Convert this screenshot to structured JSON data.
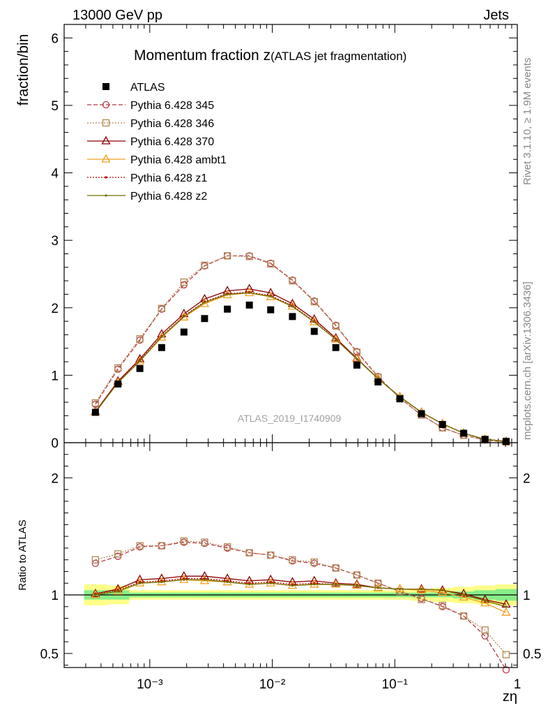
{
  "header": {
    "left": "13000 GeV pp",
    "right": "Jets"
  },
  "side_labels": {
    "rivet": "Rivet 3.1.10, ≥ 1.9M events",
    "mcplots": "mcplots.cern.ch [arXiv:1306.3436]"
  },
  "main_panel": {
    "title_main": "Momentum fraction z",
    "title_paren": "(ATLAS jet fragmentation)",
    "ylabel": "fraction/bin",
    "watermark": "ATLAS_2019_I1740909"
  },
  "ratio_panel": {
    "ylabel": "Ratio to ATLAS"
  },
  "xlabel": "zη",
  "chart_data": [
    {
      "type": "scatter",
      "x_scale": "log",
      "xlim": [
        0.0002,
        1
      ],
      "ylim": [
        0,
        6.2
      ],
      "x_tick_labels": [
        "10⁻³",
        "10⁻²",
        "10⁻¹",
        "1"
      ],
      "y_tick_labels": [
        "0",
        "1",
        "2",
        "3",
        "4",
        "5",
        "6"
      ],
      "legend_position": "top-left",
      "x": [
        0.00036,
        0.00055,
        0.00083,
        0.00125,
        0.0019,
        0.0028,
        0.0043,
        0.0065,
        0.0097,
        0.0146,
        0.022,
        0.033,
        0.049,
        0.073,
        0.11,
        0.165,
        0.245,
        0.365,
        0.545,
        0.81
      ],
      "series": [
        {
          "name": "ATLAS",
          "color": "#000000",
          "style": "data",
          "values": [
            0.45,
            0.87,
            1.1,
            1.41,
            1.64,
            1.84,
            1.98,
            2.04,
            1.97,
            1.87,
            1.65,
            1.41,
            1.15,
            0.9,
            0.65,
            0.43,
            0.27,
            0.14,
            0.05,
            0.02
          ]
        },
        {
          "name": "Pythia 6.428 345",
          "color": "#b5384a",
          "style": "dashed",
          "marker": "circle",
          "values": [
            0.57,
            1.09,
            1.52,
            1.98,
            2.34,
            2.62,
            2.77,
            2.77,
            2.66,
            2.41,
            2.1,
            1.74,
            1.35,
            0.98,
            0.66,
            0.41,
            0.22,
            0.11,
            0.04,
            0.01
          ]
        },
        {
          "name": "Pythia 6.428 346",
          "color": "#b08850",
          "style": "dotted",
          "marker": "square",
          "values": [
            0.59,
            1.11,
            1.54,
            1.99,
            2.38,
            2.63,
            2.77,
            2.76,
            2.65,
            2.4,
            2.09,
            1.73,
            1.34,
            0.97,
            0.66,
            0.41,
            0.22,
            0.11,
            0.04,
            0.01
          ]
        },
        {
          "name": "Pythia 6.428 370",
          "color": "#8b0000",
          "style": "solid",
          "marker": "triangle",
          "values": [
            0.46,
            0.91,
            1.24,
            1.61,
            1.91,
            2.13,
            2.25,
            2.28,
            2.22,
            2.06,
            1.83,
            1.55,
            1.25,
            0.95,
            0.68,
            0.45,
            0.28,
            0.14,
            0.05,
            0.02
          ]
        },
        {
          "name": "Pythia 6.428 ambt1",
          "color": "#f0a020",
          "style": "solid",
          "marker": "triangle",
          "values": [
            0.45,
            0.89,
            1.21,
            1.56,
            1.86,
            2.06,
            2.19,
            2.22,
            2.16,
            2.02,
            1.79,
            1.53,
            1.24,
            0.95,
            0.68,
            0.45,
            0.28,
            0.14,
            0.05,
            0.02
          ]
        },
        {
          "name": "Pythia 6.428 z1",
          "color": "#c00000",
          "style": "dotted",
          "marker": "dot",
          "values": [
            0.45,
            0.9,
            1.22,
            1.58,
            1.88,
            2.09,
            2.21,
            2.23,
            2.18,
            2.03,
            1.8,
            1.53,
            1.24,
            0.95,
            0.68,
            0.45,
            0.28,
            0.14,
            0.05,
            0.02
          ]
        },
        {
          "name": "Pythia 6.428 z2",
          "color": "#707000",
          "style": "solid",
          "marker": "dot",
          "values": [
            0.45,
            0.89,
            1.21,
            1.57,
            1.87,
            2.08,
            2.2,
            2.22,
            2.17,
            2.02,
            1.79,
            1.53,
            1.24,
            0.95,
            0.68,
            0.45,
            0.28,
            0.14,
            0.05,
            0.02
          ]
        }
      ]
    },
    {
      "type": "line",
      "x_scale": "log",
      "xlim": [
        0.0002,
        1
      ],
      "ylim": [
        0.38,
        2.3
      ],
      "y_tick_labels": [
        "0.5",
        "1",
        "2"
      ],
      "x_tick_labels": [
        "10⁻³",
        "10⁻²",
        "10⁻¹",
        "1"
      ],
      "bands": {
        "inner_color": "#88ee88",
        "outer_color": "#ffff88",
        "inner_halfwidth": [
          0.04,
          0.04,
          0.02,
          0.02,
          0.02,
          0.02,
          0.02,
          0.02,
          0.02,
          0.02,
          0.02,
          0.02,
          0.02,
          0.02,
          0.02,
          0.02,
          0.02,
          0.03,
          0.04,
          0.05
        ],
        "outer_halfwidth": [
          0.09,
          0.08,
          0.04,
          0.04,
          0.04,
          0.04,
          0.04,
          0.04,
          0.04,
          0.04,
          0.04,
          0.04,
          0.04,
          0.04,
          0.04,
          0.05,
          0.06,
          0.07,
          0.08,
          0.09
        ]
      },
      "x": [
        0.00036,
        0.00055,
        0.00083,
        0.00125,
        0.0019,
        0.0028,
        0.0043,
        0.0065,
        0.0097,
        0.0146,
        0.022,
        0.033,
        0.049,
        0.073,
        0.11,
        0.165,
        0.245,
        0.365,
        0.545,
        0.81
      ],
      "series": [
        {
          "name": "Pythia 6.428 345",
          "color": "#b5384a",
          "style": "dashed",
          "marker": "circle",
          "values": [
            1.27,
            1.33,
            1.41,
            1.42,
            1.45,
            1.44,
            1.4,
            1.36,
            1.34,
            1.29,
            1.27,
            1.23,
            1.17,
            1.1,
            1.03,
            0.97,
            0.9,
            0.82,
            0.65,
            0.36
          ]
        },
        {
          "name": "Pythia 6.428 346",
          "color": "#b08850",
          "style": "dotted",
          "marker": "square",
          "values": [
            1.3,
            1.35,
            1.42,
            1.42,
            1.46,
            1.45,
            1.41,
            1.36,
            1.34,
            1.3,
            1.28,
            1.23,
            1.17,
            1.1,
            1.03,
            0.96,
            0.91,
            0.82,
            0.7,
            0.49
          ]
        },
        {
          "name": "Pythia 6.428 370",
          "color": "#8b0000",
          "style": "solid",
          "marker": "triangle",
          "values": [
            1.01,
            1.05,
            1.13,
            1.14,
            1.16,
            1.16,
            1.14,
            1.12,
            1.13,
            1.11,
            1.12,
            1.1,
            1.09,
            1.06,
            1.05,
            1.05,
            1.04,
            1.01,
            0.96,
            0.92
          ]
        },
        {
          "name": "Pythia 6.428 ambt1",
          "color": "#f0a020",
          "style": "solid",
          "marker": "triangle",
          "values": [
            1.0,
            1.03,
            1.1,
            1.11,
            1.13,
            1.12,
            1.11,
            1.09,
            1.1,
            1.08,
            1.09,
            1.09,
            1.08,
            1.06,
            1.05,
            1.04,
            1.02,
            0.98,
            0.93,
            0.85
          ]
        },
        {
          "name": "Pythia 6.428 z1",
          "color": "#c00000",
          "style": "dotted",
          "marker": "dot",
          "values": [
            1.01,
            1.04,
            1.11,
            1.12,
            1.14,
            1.14,
            1.12,
            1.1,
            1.11,
            1.09,
            1.1,
            1.09,
            1.08,
            1.06,
            1.05,
            1.05,
            1.04,
            1.0,
            0.95,
            0.9
          ]
        },
        {
          "name": "Pythia 6.428 z2",
          "color": "#707000",
          "style": "solid",
          "marker": "dot",
          "values": [
            1.0,
            1.03,
            1.1,
            1.11,
            1.13,
            1.13,
            1.11,
            1.09,
            1.1,
            1.08,
            1.09,
            1.09,
            1.08,
            1.06,
            1.05,
            1.05,
            1.04,
            1.0,
            0.95,
            0.9
          ]
        }
      ]
    }
  ]
}
